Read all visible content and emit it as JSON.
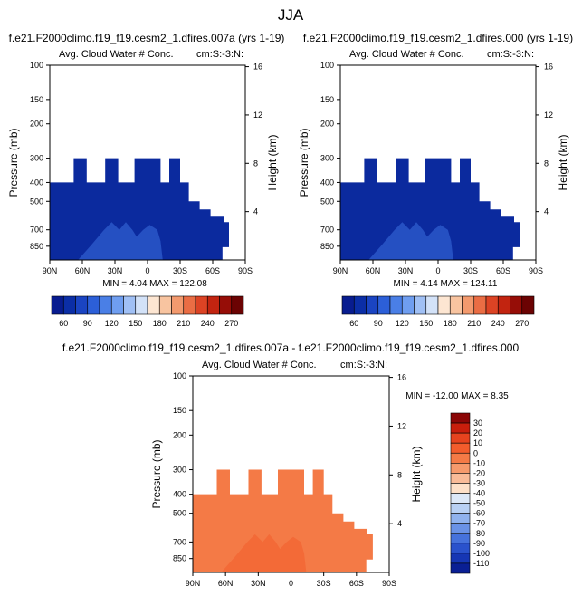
{
  "page": {
    "title": "JJA"
  },
  "chart_data": [
    {
      "type": "heatmap",
      "case": "f.e21.F2000climo.f19_f19.cesm2_1.dfires.007a (yrs 1-19)",
      "title": "Avg. Cloud Water # Conc.",
      "corner_label": "cm:S:-3:N:",
      "xlabel": "",
      "ylabel": "Pressure (mb)",
      "y2label": "Height (km)",
      "x_ticks": [
        "90N",
        "60N",
        "30N",
        "0",
        "30S",
        "60S",
        "90S"
      ],
      "y_ticks": [
        100,
        150,
        200,
        300,
        400,
        500,
        700,
        850
      ],
      "y2_ticks": [
        16,
        12,
        8,
        4
      ],
      "y_scale": "log",
      "ylim": [
        1000,
        100
      ],
      "min_label": "MIN =",
      "min_value": "4.04",
      "max_label": "MAX =",
      "max_value": "122.08",
      "colorbar": {
        "orientation": "horizontal",
        "labels": [
          "60",
          "90",
          "120",
          "150",
          "180",
          "210",
          "240",
          "270"
        ],
        "colors": [
          "#081c8f",
          "#0b2ea6",
          "#1a44c2",
          "#2c5fd8",
          "#4a7fe6",
          "#6f9ef0",
          "#a0c0f5",
          "#d3e2f8",
          "#fde6d2",
          "#f8c4a0",
          "#f39a6e",
          "#ea6d44",
          "#dc4324",
          "#c22410",
          "#960d07",
          "#6b0303"
        ]
      },
      "fill_color": "#0b2a9e",
      "core_color": "#3d6fe0"
    },
    {
      "type": "heatmap",
      "case": "f.e21.F2000climo.f19_f19.cesm2_1.dfires.000 (yrs 1-19)",
      "title": "Avg. Cloud Water # Conc.",
      "corner_label": "cm:S:-3:N:",
      "xlabel": "",
      "ylabel": "Pressure (mb)",
      "y2label": "Height (km)",
      "x_ticks": [
        "90N",
        "60N",
        "30N",
        "0",
        "30S",
        "60S",
        "90S"
      ],
      "y_ticks": [
        100,
        150,
        200,
        300,
        400,
        500,
        700,
        850
      ],
      "y2_ticks": [
        16,
        12,
        8,
        4
      ],
      "y_scale": "log",
      "ylim": [
        1000,
        100
      ],
      "min_label": "MIN =",
      "min_value": "4.14",
      "max_label": "MAX =",
      "max_value": "124.11",
      "colorbar": {
        "orientation": "horizontal",
        "labels": [
          "60",
          "90",
          "120",
          "150",
          "180",
          "210",
          "240",
          "270"
        ],
        "colors": [
          "#081c8f",
          "#0b2ea6",
          "#1a44c2",
          "#2c5fd8",
          "#4a7fe6",
          "#6f9ef0",
          "#a0c0f5",
          "#d3e2f8",
          "#fde6d2",
          "#f8c4a0",
          "#f39a6e",
          "#ea6d44",
          "#dc4324",
          "#c22410",
          "#960d07",
          "#6b0303"
        ]
      },
      "fill_color": "#0b2a9e",
      "core_color": "#3d6fe0"
    },
    {
      "type": "heatmap",
      "case": "f.e21.F2000climo.f19_f19.cesm2_1.dfires.007a - f.e21.F2000climo.f19_f19.cesm2_1.dfires.000",
      "title": "Avg. Cloud Water # Conc.",
      "corner_label": "cm:S:-3:N:",
      "xlabel": "",
      "ylabel": "Pressure (mb)",
      "y2label": "Height (km)",
      "x_ticks": [
        "90N",
        "60N",
        "30N",
        "0",
        "30S",
        "60S",
        "90S"
      ],
      "y_ticks": [
        100,
        150,
        200,
        300,
        400,
        500,
        700,
        850
      ],
      "y2_ticks": [
        16,
        12,
        8,
        4
      ],
      "y_scale": "log",
      "ylim": [
        1000,
        100
      ],
      "min_label": "MIN =",
      "min_value": "-12.00",
      "max_label": "MAX =",
      "max_value": "8.35",
      "colorbar": {
        "orientation": "vertical",
        "labels": [
          "30",
          "20",
          "10",
          "0",
          "-10",
          "-20",
          "-30",
          "-40",
          "-50",
          "-60",
          "-70",
          "-80",
          "-90",
          "-100",
          "-110"
        ],
        "colors": [
          "#8b0606",
          "#c81e0c",
          "#e6431e",
          "#f25c2c",
          "#f47a46",
          "#f69a6c",
          "#f9bb98",
          "#fde0c8",
          "#dce8f8",
          "#b8d0f4",
          "#90b2ee",
          "#6a92e6",
          "#4672dc",
          "#2a52cc",
          "#1636b4",
          "#0a1f94"
        ]
      },
      "fill_color": "#f47a46",
      "core_color": "#f25c2c"
    }
  ]
}
